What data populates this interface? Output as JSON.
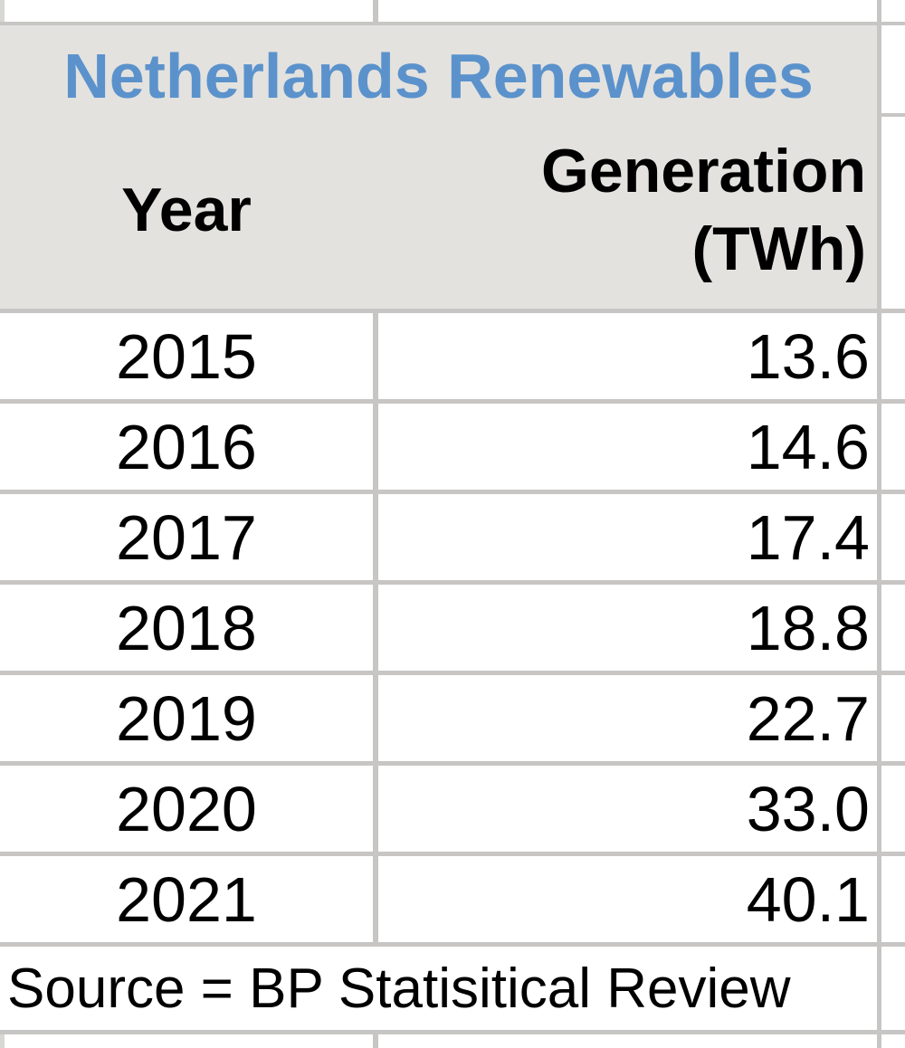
{
  "sheet": {
    "title": "Netherlands Renewables",
    "header": {
      "year": "Year",
      "generation_line1": "Generation",
      "generation_line2": "(TWh)"
    },
    "rows": [
      {
        "year": "2015",
        "value": "13.6"
      },
      {
        "year": "2016",
        "value": "14.6"
      },
      {
        "year": "2017",
        "value": "17.4"
      },
      {
        "year": "2018",
        "value": "18.8"
      },
      {
        "year": "2019",
        "value": "22.7"
      },
      {
        "year": "2020",
        "value": "33.0"
      },
      {
        "year": "2021",
        "value": "40.1"
      }
    ],
    "source_note": "Source = BP Statisitical Review"
  },
  "colors": {
    "title_blue": "#5b92cc",
    "header_fill": "#e3e2df",
    "gridline": "#c7c6c4",
    "cell_fill": "#ffffff",
    "text": "#000000"
  },
  "chart_data": {
    "type": "table",
    "title": "Netherlands Renewables",
    "columns": [
      "Year",
      "Generation (TWh)"
    ],
    "rows": [
      [
        2015,
        13.6
      ],
      [
        2016,
        14.6
      ],
      [
        2017,
        17.4
      ],
      [
        2018,
        18.8
      ],
      [
        2019,
        22.7
      ],
      [
        2020,
        33.0
      ],
      [
        2021,
        40.1
      ]
    ],
    "note": "Source = BP Statisitical Review"
  }
}
